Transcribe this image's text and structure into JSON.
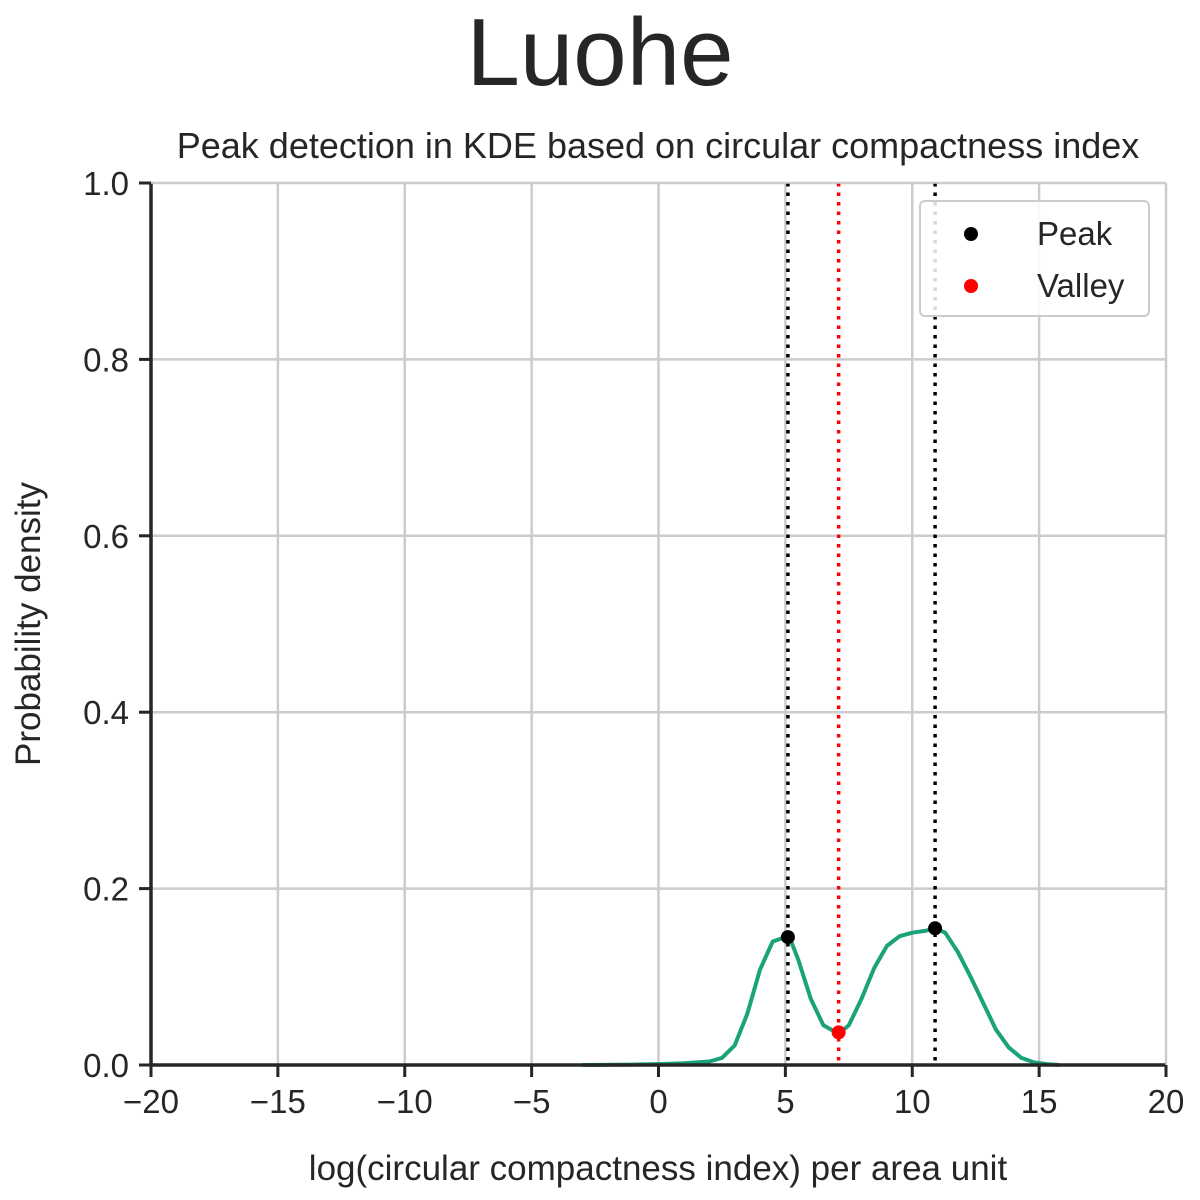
{
  "chart_data": {
    "type": "line",
    "suptitle": "Luohe",
    "title": "Peak detection in KDE based on circular compactness index",
    "xlabel": "log(circular compactness index) per area unit",
    "ylabel": "Probability density",
    "xlim": [
      -20,
      20
    ],
    "ylim": [
      0,
      1.0
    ],
    "xticks": [
      -20,
      -15,
      -10,
      -5,
      0,
      5,
      10,
      15,
      20
    ],
    "xtick_labels": [
      "−20",
      "−15",
      "−10",
      "−5",
      "0",
      "5",
      "10",
      "15",
      "20"
    ],
    "yticks": [
      0,
      0.2,
      0.4,
      0.6,
      0.8,
      1.0
    ],
    "ytick_labels": [
      "0.0",
      "0.2",
      "0.4",
      "0.6",
      "0.8",
      "1.0"
    ],
    "grid": true,
    "legend_position": "top-right",
    "kde": {
      "color": "#1aa37a",
      "x": [
        -3,
        -1,
        0,
        1,
        2,
        2.5,
        3,
        3.5,
        4,
        4.5,
        5,
        5.2,
        5.5,
        6,
        6.5,
        7,
        7.2,
        7.5,
        8,
        8.5,
        9,
        9.5,
        10,
        10.5,
        10.9,
        11.3,
        11.8,
        12.3,
        12.8,
        13.3,
        13.8,
        14.3,
        14.8,
        15.3,
        15.8
      ],
      "y": [
        0,
        0.0005,
        0.001,
        0.002,
        0.004,
        0.008,
        0.022,
        0.058,
        0.108,
        0.14,
        0.145,
        0.142,
        0.12,
        0.075,
        0.045,
        0.037,
        0.038,
        0.045,
        0.075,
        0.11,
        0.135,
        0.146,
        0.15,
        0.152,
        0.155,
        0.15,
        0.128,
        0.1,
        0.07,
        0.04,
        0.02,
        0.008,
        0.003,
        0.001,
        0
      ]
    },
    "series": [
      {
        "name": "Peak",
        "color": "#000000",
        "x": [
          5.1,
          10.9
        ],
        "y": [
          0.145,
          0.155
        ]
      },
      {
        "name": "Valley",
        "color": "#ff0000",
        "x": [
          7.1
        ],
        "y": [
          0.037
        ]
      }
    ],
    "vlines": [
      {
        "x": 5.1,
        "color": "#000000",
        "style": "dotted"
      },
      {
        "x": 7.1,
        "color": "#ff0000",
        "style": "dotted"
      },
      {
        "x": 10.9,
        "color": "#000000",
        "style": "dotted"
      }
    ]
  }
}
